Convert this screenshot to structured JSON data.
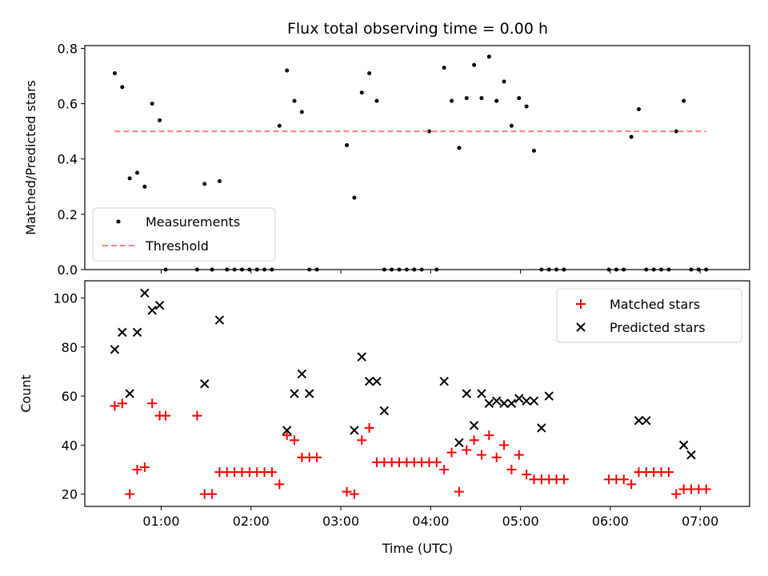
{
  "chart_data": [
    {
      "type": "scatter",
      "title": "Flux total observing time = 0.00 h",
      "xlabel": "",
      "ylabel": "Matched/Predicted stars",
      "xlim": [
        "00:09",
        "07:33"
      ],
      "ylim": [
        0,
        0.81
      ],
      "yticks": [
        "0.0",
        "0.2",
        "0.4",
        "0.6",
        "0.8"
      ],
      "xticks": [
        "01:00",
        "02:00",
        "03:00",
        "04:00",
        "05:00",
        "06:00",
        "07:00"
      ],
      "show_xtick_labels": false,
      "grid": false,
      "legend": {
        "position": "lower-left",
        "entries": [
          "Measurements",
          "Threshold"
        ]
      },
      "series": [
        {
          "name": "Measurements",
          "marker": "dot",
          "color": "#000000",
          "x": [
            "00:29",
            "00:34",
            "00:39",
            "00:44",
            "00:49",
            "00:54",
            "00:59",
            "01:03",
            "01:24",
            "01:29",
            "01:34",
            "01:39",
            "01:44",
            "01:49",
            "01:54",
            "01:59",
            "02:04",
            "02:09",
            "02:14",
            "02:19",
            "02:24",
            "02:29",
            "02:34",
            "02:39",
            "02:44",
            "03:04",
            "03:09",
            "03:14",
            "03:19",
            "03:24",
            "03:29",
            "03:34",
            "03:39",
            "03:44",
            "03:49",
            "03:54",
            "03:59",
            "04:04",
            "04:09",
            "04:14",
            "04:19",
            "04:24",
            "04:29",
            "04:34",
            "04:39",
            "04:44",
            "04:49",
            "04:54",
            "04:59",
            "05:04",
            "05:09",
            "05:14",
            "05:19",
            "05:24",
            "05:29",
            "05:59",
            "06:04",
            "06:09",
            "06:14",
            "06:19",
            "06:24",
            "06:29",
            "06:34",
            "06:39",
            "06:44",
            "06:49",
            "06:54",
            "06:59",
            "07:04"
          ],
          "y": [
            0.71,
            0.66,
            0.33,
            0.35,
            0.3,
            0.6,
            0.54,
            0.0,
            0.0,
            0.31,
            0.0,
            0.32,
            0.0,
            0.0,
            0.0,
            0.0,
            0.0,
            0.0,
            0.0,
            0.52,
            0.72,
            0.61,
            0.57,
            0.0,
            0.0,
            0.45,
            0.26,
            0.64,
            0.71,
            0.61,
            0.0,
            0.0,
            0.0,
            0.0,
            0.0,
            0.0,
            0.5,
            0.0,
            0.73,
            0.61,
            0.44,
            0.62,
            0.74,
            0.62,
            0.77,
            0.61,
            0.68,
            0.52,
            0.62,
            0.59,
            0.43,
            0.0,
            0.0,
            0.0,
            0.0,
            0.0,
            0.0,
            0.0,
            0.48,
            0.58,
            0.0,
            0.0,
            0.0,
            0.0,
            0.5,
            0.61,
            0.0,
            0.0,
            0.0
          ]
        },
        {
          "name": "Threshold",
          "style": "dashed",
          "color": "#ff7f7f",
          "x": [
            "00:29",
            "07:04"
          ],
          "y": [
            0.5,
            0.5
          ]
        }
      ]
    },
    {
      "type": "scatter",
      "title": "",
      "xlabel": "Time (UTC)",
      "ylabel": "Count",
      "xlim": [
        "00:09",
        "07:33"
      ],
      "ylim": [
        15,
        107
      ],
      "yticks": [
        "20",
        "40",
        "60",
        "80",
        "100"
      ],
      "xticks": [
        "01:00",
        "02:00",
        "03:00",
        "04:00",
        "05:00",
        "06:00",
        "07:00"
      ],
      "grid": false,
      "legend": {
        "position": "upper-right",
        "entries": [
          "Matched stars",
          "Predicted stars"
        ]
      },
      "series": [
        {
          "name": "Matched stars",
          "marker": "plus",
          "color": "#ff0000",
          "x": [
            "00:29",
            "00:34",
            "00:39",
            "00:44",
            "00:49",
            "00:54",
            "00:59",
            "01:03",
            "01:24",
            "01:29",
            "01:34",
            "01:39",
            "01:44",
            "01:49",
            "01:54",
            "01:59",
            "02:04",
            "02:09",
            "02:14",
            "02:19",
            "02:24",
            "02:29",
            "02:34",
            "02:39",
            "02:44",
            "03:04",
            "03:09",
            "03:14",
            "03:19",
            "03:24",
            "03:29",
            "03:34",
            "03:39",
            "03:44",
            "03:49",
            "03:54",
            "03:59",
            "04:04",
            "04:09",
            "04:14",
            "04:19",
            "04:24",
            "04:29",
            "04:34",
            "04:39",
            "04:44",
            "04:49",
            "04:54",
            "04:59",
            "05:04",
            "05:09",
            "05:14",
            "05:19",
            "05:24",
            "05:29",
            "05:59",
            "06:04",
            "06:09",
            "06:14",
            "06:19",
            "06:24",
            "06:29",
            "06:34",
            "06:39",
            "06:44",
            "06:49",
            "06:54",
            "06:59",
            "07:04"
          ],
          "y": [
            56,
            57,
            20,
            30,
            31,
            57,
            52,
            52,
            52,
            20,
            20,
            29,
            29,
            29,
            29,
            29,
            29,
            29,
            29,
            24,
            44,
            42,
            35,
            35,
            35,
            21,
            20,
            42,
            47,
            33,
            33,
            33,
            33,
            33,
            33,
            33,
            33,
            33,
            30,
            37,
            21,
            38,
            42,
            36,
            44,
            35,
            40,
            30,
            36,
            28,
            26,
            26,
            26,
            26,
            26,
            26,
            26,
            26,
            24,
            29,
            29,
            29,
            29,
            29,
            20,
            22,
            22,
            22,
            22
          ]
        },
        {
          "name": "Predicted stars",
          "marker": "x",
          "color": "#000000",
          "x": [
            "00:29",
            "00:34",
            "00:39",
            "00:44",
            "00:49",
            "00:54",
            "00:59",
            "01:29",
            "01:39",
            "02:24",
            "02:29",
            "02:34",
            "02:39",
            "03:09",
            "03:14",
            "03:19",
            "03:24",
            "03:29",
            "04:09",
            "04:19",
            "04:24",
            "04:29",
            "04:34",
            "04:39",
            "04:44",
            "04:49",
            "04:54",
            "04:59",
            "05:04",
            "05:09",
            "05:14",
            "05:19",
            "06:19",
            "06:24",
            "06:49",
            "06:54"
          ],
          "y": [
            79,
            86,
            61,
            86,
            102,
            95,
            97,
            65,
            91,
            46,
            61,
            69,
            61,
            46,
            76,
            66,
            66,
            54,
            66,
            41,
            61,
            48,
            61,
            57,
            58,
            57,
            57,
            59,
            58,
            58,
            47,
            60,
            50,
            50,
            40,
            36
          ]
        }
      ]
    }
  ]
}
